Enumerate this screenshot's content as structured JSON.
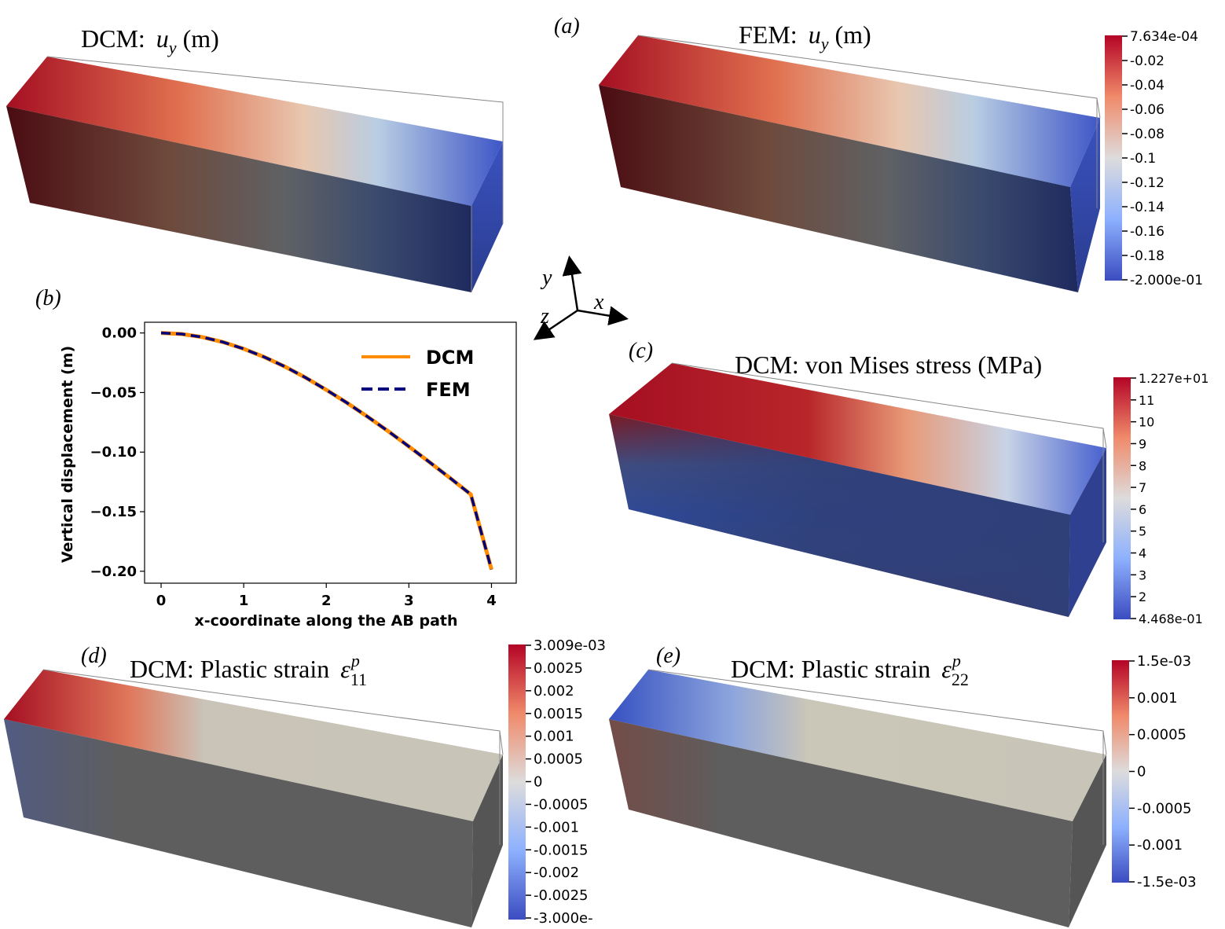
{
  "panels": {
    "a": {
      "label": "(a)",
      "dcm_title_prefix": "DCM:",
      "fem_title_prefix": "FEM:",
      "var_main": "u",
      "var_sub": "y",
      "unit": "(m)",
      "colorbar_ticks": [
        "7.634e-04",
        "-0.02",
        "-0.04",
        "-0.06",
        "-0.08",
        "-0.1",
        "-0.12",
        "-0.14",
        "-0.16",
        "-0.18",
        "-2.000e-01"
      ]
    },
    "b": {
      "label": "(b)"
    },
    "c": {
      "label": "(c)",
      "title": "DCM: von Mises stress (MPa)",
      "colorbar_ticks": [
        "1.227e+01",
        "11",
        "10",
        "9",
        "8",
        "7",
        "6",
        "5",
        "4",
        "3",
        "2",
        "4.468e-01"
      ]
    },
    "d": {
      "label": "(d)",
      "title_prefix": "DCM: Plastic strain",
      "sym": "ε",
      "sup": "p",
      "sub": "11",
      "colorbar_ticks": [
        "3.009e-03",
        "0.0025",
        "0.002",
        "0.0015",
        "0.001",
        "0.0005",
        "0",
        "-0.0005",
        "-0.001",
        "-0.0015",
        "-0.002",
        "-0.0025",
        "-3.000e-"
      ]
    },
    "e": {
      "label": "(e)",
      "title_prefix": "DCM: Plastic strain",
      "sym": "ε",
      "sup": "p",
      "sub": "22",
      "colorbar_ticks": [
        "1.5e-03",
        "0.001",
        "0.0005",
        "0",
        "-0.0005",
        "-0.001",
        "-1.5e-03"
      ]
    }
  },
  "axes_triad": {
    "x": "x",
    "y": "y",
    "z": "z"
  },
  "chart_data": {
    "type": "line",
    "xlabel": "x-coordinate along the AB path",
    "ylabel": "Vertical displacement (m)",
    "xlim": [
      -0.2,
      4.3
    ],
    "ylim": [
      -0.21,
      0.009
    ],
    "xticks": [
      0,
      1,
      2,
      3,
      4
    ],
    "xtick_labels": [
      "0",
      "1",
      "2",
      "3",
      "4"
    ],
    "yticks": [
      0.0,
      -0.05,
      -0.1,
      -0.15,
      -0.2
    ],
    "ytick_labels": [
      "0.00",
      "−0.05",
      "−0.10",
      "−0.15",
      "−0.20"
    ],
    "legend_position": "top-right",
    "series": [
      {
        "name": "DCM",
        "color": "#ff8c00",
        "style": "solid",
        "x": [
          0,
          0.25,
          0.5,
          0.75,
          1.0,
          1.25,
          1.5,
          1.75,
          2.0,
          2.25,
          2.5,
          2.75,
          3.0,
          3.25,
          3.5,
          3.75,
          4.0
        ],
        "y": [
          0.0,
          -0.0009,
          -0.0035,
          -0.0077,
          -0.0133,
          -0.0202,
          -0.0283,
          -0.0375,
          -0.0477,
          -0.0586,
          -0.0703,
          -0.0825,
          -0.0953,
          -0.1084,
          -0.1218,
          -0.1355,
          -0.1985
        ]
      },
      {
        "name": "FEM",
        "color": "#00007f",
        "style": "dashed",
        "x": [
          0,
          0.25,
          0.5,
          0.75,
          1.0,
          1.25,
          1.5,
          1.75,
          2.0,
          2.25,
          2.5,
          2.75,
          3.0,
          3.25,
          3.5,
          3.75,
          4.0
        ],
        "y": [
          0.0,
          -0.0009,
          -0.0035,
          -0.0077,
          -0.0133,
          -0.0202,
          -0.0283,
          -0.0375,
          -0.0477,
          -0.0586,
          -0.0703,
          -0.0825,
          -0.0953,
          -0.1084,
          -0.1218,
          -0.1355,
          -0.1985
        ]
      }
    ]
  }
}
